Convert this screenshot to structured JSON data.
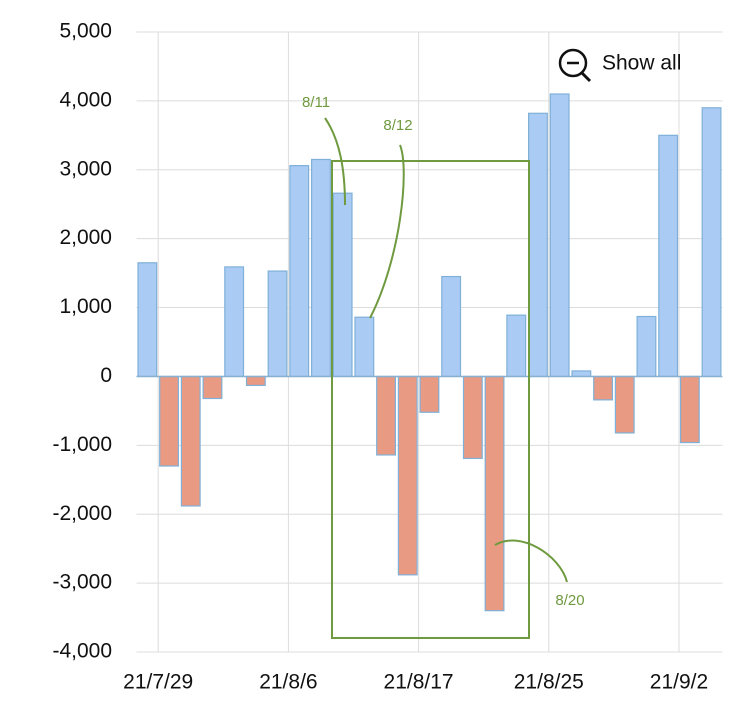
{
  "chart_data": {
    "type": "bar",
    "categories": [
      null,
      "21/7/29",
      null,
      null,
      null,
      null,
      null,
      "21/8/6",
      null,
      null,
      null,
      null,
      null,
      "21/8/17",
      null,
      null,
      null,
      null,
      null,
      "21/8/25",
      null,
      null,
      null,
      null,
      null,
      "21/9/2",
      null
    ],
    "values": [
      1650,
      -1300,
      -1880,
      -320,
      1590,
      -130,
      1530,
      3060,
      3150,
      2660,
      860,
      -1140,
      -2880,
      -520,
      1450,
      -1190,
      -3400,
      890,
      3820,
      4100,
      80,
      -340,
      -820,
      870,
      3500,
      -960,
      3900
    ],
    "positive_color": "#a9cbf4",
    "negative_color": "#e99a83",
    "border_color": "#7fb0d8",
    "ylim": [
      -4000,
      5000
    ],
    "yticks": [
      {
        "value": -4000,
        "label": "-4,000"
      },
      {
        "value": -3000,
        "label": "-3,000"
      },
      {
        "value": -2000,
        "label": "-2,000"
      },
      {
        "value": -1000,
        "label": "-1,000"
      },
      0,
      {
        "value": 1000,
        "label": "1,000"
      },
      {
        "value": 2000,
        "label": "2,000"
      },
      {
        "value": 3000,
        "label": "3,000"
      },
      {
        "value": 4000,
        "label": "4,000"
      },
      {
        "value": 5000,
        "label": "5,000"
      }
    ],
    "grid": true,
    "annotations": [
      "8/11",
      "8/12",
      "8/20"
    ],
    "button": "Show all"
  }
}
